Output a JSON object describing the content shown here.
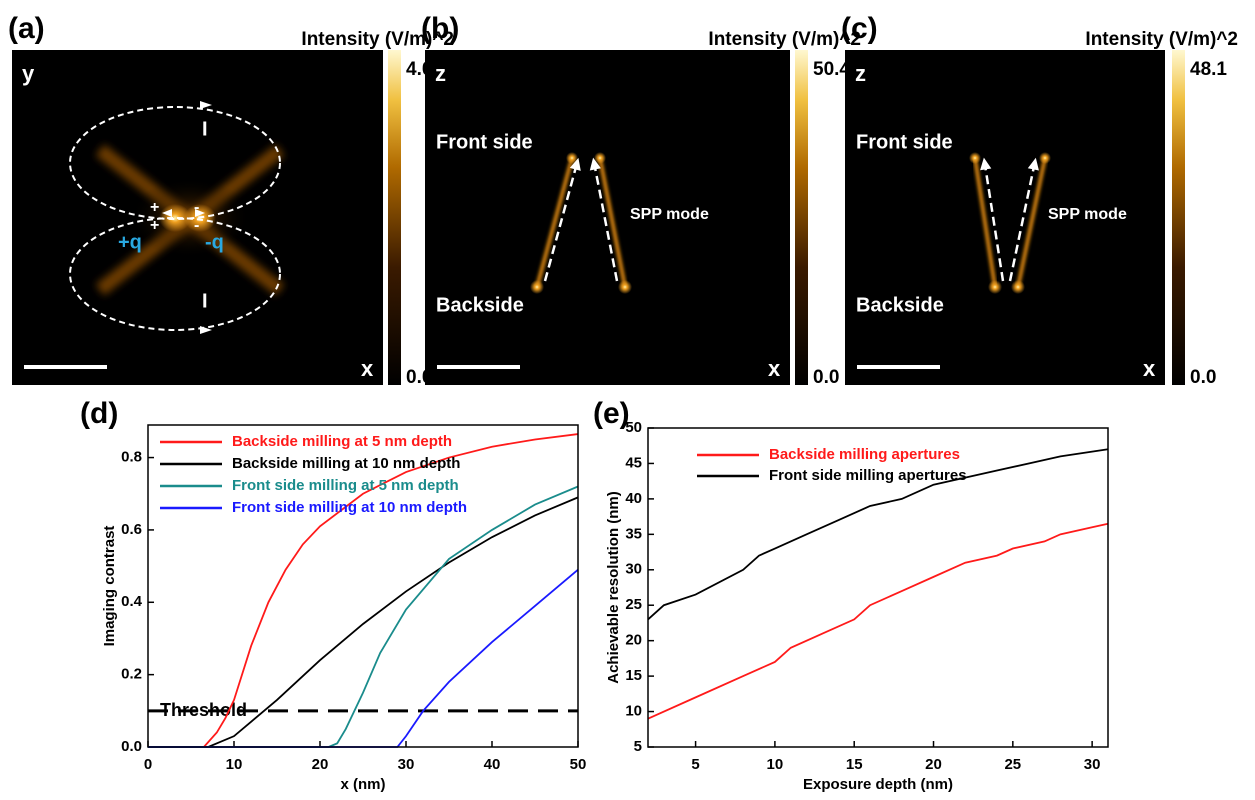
{
  "panels": [
    {
      "label": "(a)",
      "colorbar_title": "Intensity (V/m)^2",
      "colorbar_max": "4.0",
      "colorbar_min": "0.0",
      "vertical_axis": "y",
      "horizontal_axis": "x",
      "positive_charge": "+q",
      "negative_charge": "-q",
      "plus": "+",
      "minus": "-",
      "current": "I"
    },
    {
      "label": "(b)",
      "colorbar_title": "Intensity (V/m)^2",
      "colorbar_max": "50.4",
      "colorbar_min": "0.0",
      "vertical_axis": "z",
      "horizontal_axis": "x",
      "front": "Front side",
      "back": "Backside",
      "mode": "SPP mode"
    },
    {
      "label": "(c)",
      "colorbar_title": "Intensity (V/m)^2",
      "colorbar_max": "48.1",
      "colorbar_min": "0.0",
      "vertical_axis": "z",
      "horizontal_axis": "x",
      "front": "Front side",
      "back": "Backside",
      "mode": "SPP mode"
    }
  ],
  "chart_data": [
    {
      "type": "line",
      "panel_label": "(d)",
      "x_label": "x (nm)",
      "y_label": "Imaging contrast",
      "xlim": [
        0,
        50
      ],
      "xticks": [
        0,
        10,
        20,
        30,
        40,
        50
      ],
      "ylim": [
        0,
        0.89
      ],
      "yticks": [
        {
          "value": 0,
          "label": "0.0"
        },
        0.2,
        0.4,
        0.6,
        0.8
      ],
      "threshold": 0.1,
      "threshold_label": "Threshold",
      "series": [
        {
          "name": "Backside milling at 5 nm depth",
          "color": "#ff1a1a",
          "x": [
            0,
            6.5,
            8,
            9,
            10,
            12,
            14,
            16,
            18,
            20,
            25,
            30,
            35,
            40,
            45,
            50
          ],
          "values": [
            0,
            0,
            0.04,
            0.08,
            0.13,
            0.28,
            0.4,
            0.49,
            0.56,
            0.61,
            0.7,
            0.76,
            0.8,
            0.83,
            0.85,
            0.865
          ]
        },
        {
          "name": "Backside milling at 10 nm depth",
          "color": "#000000",
          "x": [
            0,
            7,
            10,
            12,
            15,
            20,
            25,
            30,
            35,
            40,
            45,
            50
          ],
          "values": [
            0,
            0,
            0.03,
            0.07,
            0.13,
            0.24,
            0.34,
            0.43,
            0.51,
            0.58,
            0.64,
            0.69
          ]
        },
        {
          "name": "Front side milling at 5 nm depth",
          "color": "#1a8c8c",
          "x": [
            0,
            21,
            22,
            23,
            25,
            27,
            30,
            35,
            40,
            45,
            50
          ],
          "values": [
            0,
            0,
            0.01,
            0.05,
            0.15,
            0.26,
            0.38,
            0.52,
            0.6,
            0.67,
            0.72
          ]
        },
        {
          "name": "Front side milling at 10 nm depth",
          "color": "#1a1aff",
          "x": [
            0,
            29,
            30,
            32,
            35,
            40,
            45,
            50
          ],
          "values": [
            0,
            0,
            0.03,
            0.1,
            0.18,
            0.29,
            0.39,
            0.49
          ]
        }
      ]
    },
    {
      "type": "line",
      "panel_label": "(e)",
      "x_label": "Exposure depth (nm)",
      "y_label": "Achievable resolution (nm)",
      "xlim": [
        2,
        31
      ],
      "xticks": [
        5,
        10,
        15,
        20,
        25,
        30
      ],
      "ylim": [
        5,
        50
      ],
      "yticks": [
        5,
        10,
        15,
        20,
        25,
        30,
        35,
        40,
        45,
        50
      ],
      "series": [
        {
          "name": "Backside milling apertures",
          "color": "#ff1a1a",
          "x": [
            2,
            5,
            8,
            10,
            11,
            13,
            15,
            16,
            18,
            20,
            22,
            24,
            25,
            27,
            28,
            30,
            31
          ],
          "values": [
            9,
            12,
            15,
            17,
            19,
            21,
            23,
            25,
            27,
            29,
            31,
            32,
            33,
            34,
            35,
            36,
            36.5
          ]
        },
        {
          "name": "Front side milling apertures",
          "color": "#000000",
          "x": [
            2,
            3,
            5,
            8,
            9,
            10,
            12,
            14,
            16,
            18,
            20,
            22,
            24,
            26,
            28,
            31
          ],
          "values": [
            23,
            25,
            26.5,
            30,
            32,
            33,
            35,
            37,
            39,
            40,
            42,
            43,
            44,
            45,
            46,
            47
          ]
        }
      ]
    }
  ]
}
